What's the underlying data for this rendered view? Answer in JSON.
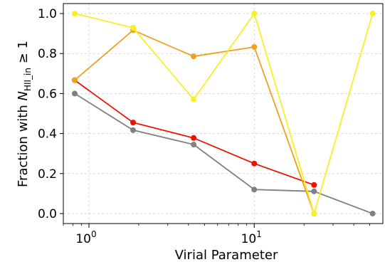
{
  "chart_data": {
    "type": "line",
    "xlabel": "Virial Parameter",
    "ylabel_prefix": "Fraction with ",
    "ylabel_var": "N",
    "ylabel_sub": "HII_in",
    "ylabel_suffix": " ≥ 1",
    "xscale": "log",
    "xlim": [
      0.7,
      60
    ],
    "ylim": [
      -0.05,
      1.05
    ],
    "x_ticks": [
      {
        "value": 1,
        "base": "10",
        "exp": "0"
      },
      {
        "value": 10,
        "base": "10",
        "exp": "1"
      }
    ],
    "y_ticks": [
      {
        "value": 0.0,
        "label": "0.0"
      },
      {
        "value": 0.2,
        "label": "0.2"
      },
      {
        "value": 0.4,
        "label": "0.4"
      },
      {
        "value": 0.6,
        "label": "0.6"
      },
      {
        "value": 0.8,
        "label": "0.8"
      },
      {
        "value": 1.0,
        "label": "1.0"
      }
    ],
    "grid": true,
    "series": [
      {
        "color": "#808080",
        "x": [
          0.82,
          1.85,
          4.3,
          10,
          23,
          52
        ],
        "y": [
          0.6,
          0.417,
          0.345,
          0.12,
          0.111,
          0.0
        ]
      },
      {
        "color": "#ee1100",
        "x": [
          0.82,
          1.85,
          4.3,
          10,
          23
        ],
        "y": [
          0.667,
          0.455,
          0.378,
          0.25,
          0.143
        ]
      },
      {
        "color": "#f0a020",
        "x": [
          0.82,
          1.85,
          4.3,
          10,
          23
        ],
        "y": [
          0.667,
          0.917,
          0.786,
          0.833,
          0.0
        ]
      },
      {
        "color": "#f8f020",
        "x": [
          0.82,
          1.85,
          4.3,
          10,
          23,
          52
        ],
        "y": [
          1.0,
          0.929,
          0.571,
          1.0,
          0.0,
          1.0
        ]
      }
    ]
  }
}
